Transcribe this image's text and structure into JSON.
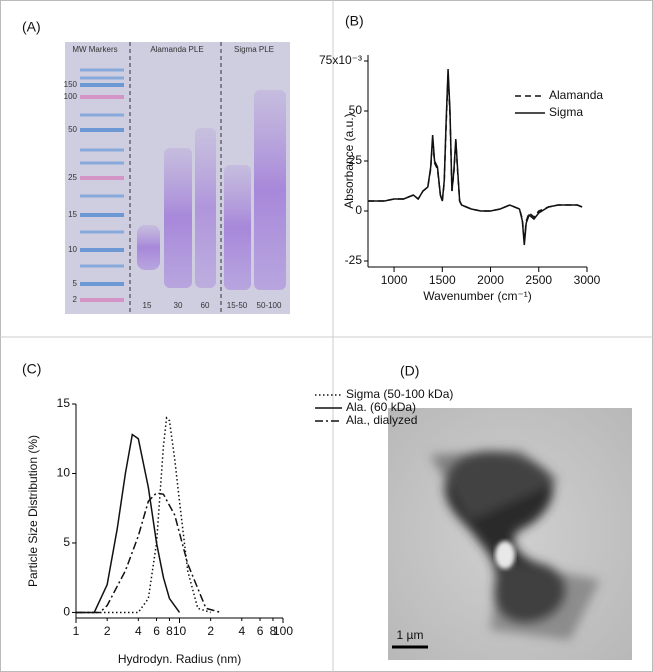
{
  "gel": {
    "label": "(A)",
    "lane_headers": [
      "MW Markers",
      "Alamanda PLE",
      "Sigma PLE"
    ],
    "mw_markers": [
      "150",
      "100",
      "50",
      "25",
      "15",
      "10",
      "5",
      "2"
    ],
    "lanes": [
      "15",
      "30",
      "60",
      "15-50",
      "50-100"
    ]
  },
  "chart_data": [
    {
      "label": "(B)",
      "type": "line",
      "xlabel": "Wavenumber (cm⁻¹)",
      "ylabel": "Absorbance (a.u.)",
      "xlim": [
        730,
        3000
      ],
      "ylim": [
        -28,
        78
      ],
      "xticks": [
        1000,
        1500,
        2000,
        2500,
        3000
      ],
      "yticks": [
        -25,
        0,
        25,
        50,
        {
          "value": 75,
          "label": "75x10⁻³"
        }
      ],
      "legend": "upper right",
      "x": [
        730,
        900,
        1000,
        1100,
        1200,
        1250,
        1300,
        1350,
        1380,
        1400,
        1420,
        1450,
        1480,
        1500,
        1520,
        1540,
        1560,
        1580,
        1600,
        1620,
        1640,
        1660,
        1680,
        1700,
        1750,
        1800,
        1900,
        2000,
        2100,
        2200,
        2300,
        2330,
        2350,
        2370,
        2400,
        2450,
        2500,
        2600,
        2700,
        2800,
        2900,
        2950
      ],
      "series": [
        {
          "name": "Alamanda",
          "color": "#111111",
          "dash": "dashed",
          "values": [
            5,
            5,
            6,
            6,
            8,
            6,
            10,
            12,
            21,
            36,
            24,
            21,
            8,
            5,
            14,
            43,
            68,
            48,
            10,
            19,
            35,
            19,
            5,
            3,
            2,
            1,
            0,
            0,
            1,
            3,
            1,
            -4,
            -15,
            -5,
            -1,
            -3,
            0,
            2,
            3,
            3,
            3,
            2
          ]
        },
        {
          "name": "Sigma",
          "color": "#111111",
          "dash": "solid",
          "values": [
            5,
            5,
            6,
            6,
            8,
            6,
            10,
            12,
            22,
            38,
            25,
            22,
            8,
            5,
            15,
            45,
            71,
            50,
            10,
            20,
            36,
            20,
            5,
            3,
            2,
            1,
            0,
            0,
            1,
            3,
            1,
            -5,
            -17,
            -6,
            -2,
            -4,
            -1,
            2,
            3,
            3,
            3,
            2
          ]
        }
      ]
    },
    {
      "label": "(C)",
      "type": "line",
      "xscale": "log",
      "xlabel": "Hydrodyn. Radius (nm)",
      "ylabel": "Particle Size Distribution (%)",
      "xlim": [
        1,
        100
      ],
      "ylim": [
        -0.4,
        15
      ],
      "xticks": [
        1,
        2,
        4,
        6,
        8,
        10,
        {
          "value": 20,
          "label": "2"
        },
        {
          "value": 40,
          "label": "4"
        },
        {
          "value": 60,
          "label": "6"
        },
        {
          "value": 80,
          "label": "8"
        },
        100
      ],
      "yticks": [
        0,
        5,
        10,
        15
      ],
      "legend": "upper right",
      "series": [
        {
          "name": "Sigma (50-100 kDa)",
          "color": "#111111",
          "dash": "dotted",
          "x": [
            1,
            4,
            5,
            6,
            7,
            7.5,
            8,
            9,
            10,
            12,
            15,
            20
          ],
          "values": [
            0,
            0,
            1,
            5,
            12,
            14,
            13.8,
            11,
            8,
            3,
            0.3,
            0
          ]
        },
        {
          "name": "Ala. (60 kDa)",
          "color": "#111111",
          "dash": "solid",
          "x": [
            1,
            1.5,
            2,
            2.5,
            3,
            3.5,
            4,
            5,
            6,
            7,
            8,
            10
          ],
          "values": [
            0,
            0,
            2,
            6,
            10,
            12.8,
            12.5,
            9,
            5,
            2.5,
            1,
            0
          ]
        },
        {
          "name": "Ala., dialyzed",
          "color": "#111111",
          "dash": "dashdot",
          "x": [
            1,
            1.7,
            2,
            3,
            4,
            5,
            6,
            7,
            9,
            12,
            18,
            25
          ],
          "values": [
            0,
            0,
            0.5,
            3,
            5.5,
            8,
            8.6,
            8.5,
            7,
            3.5,
            0.3,
            0
          ]
        }
      ]
    }
  ],
  "tem": {
    "label": "(D)",
    "scale_bar": "1 µm"
  }
}
